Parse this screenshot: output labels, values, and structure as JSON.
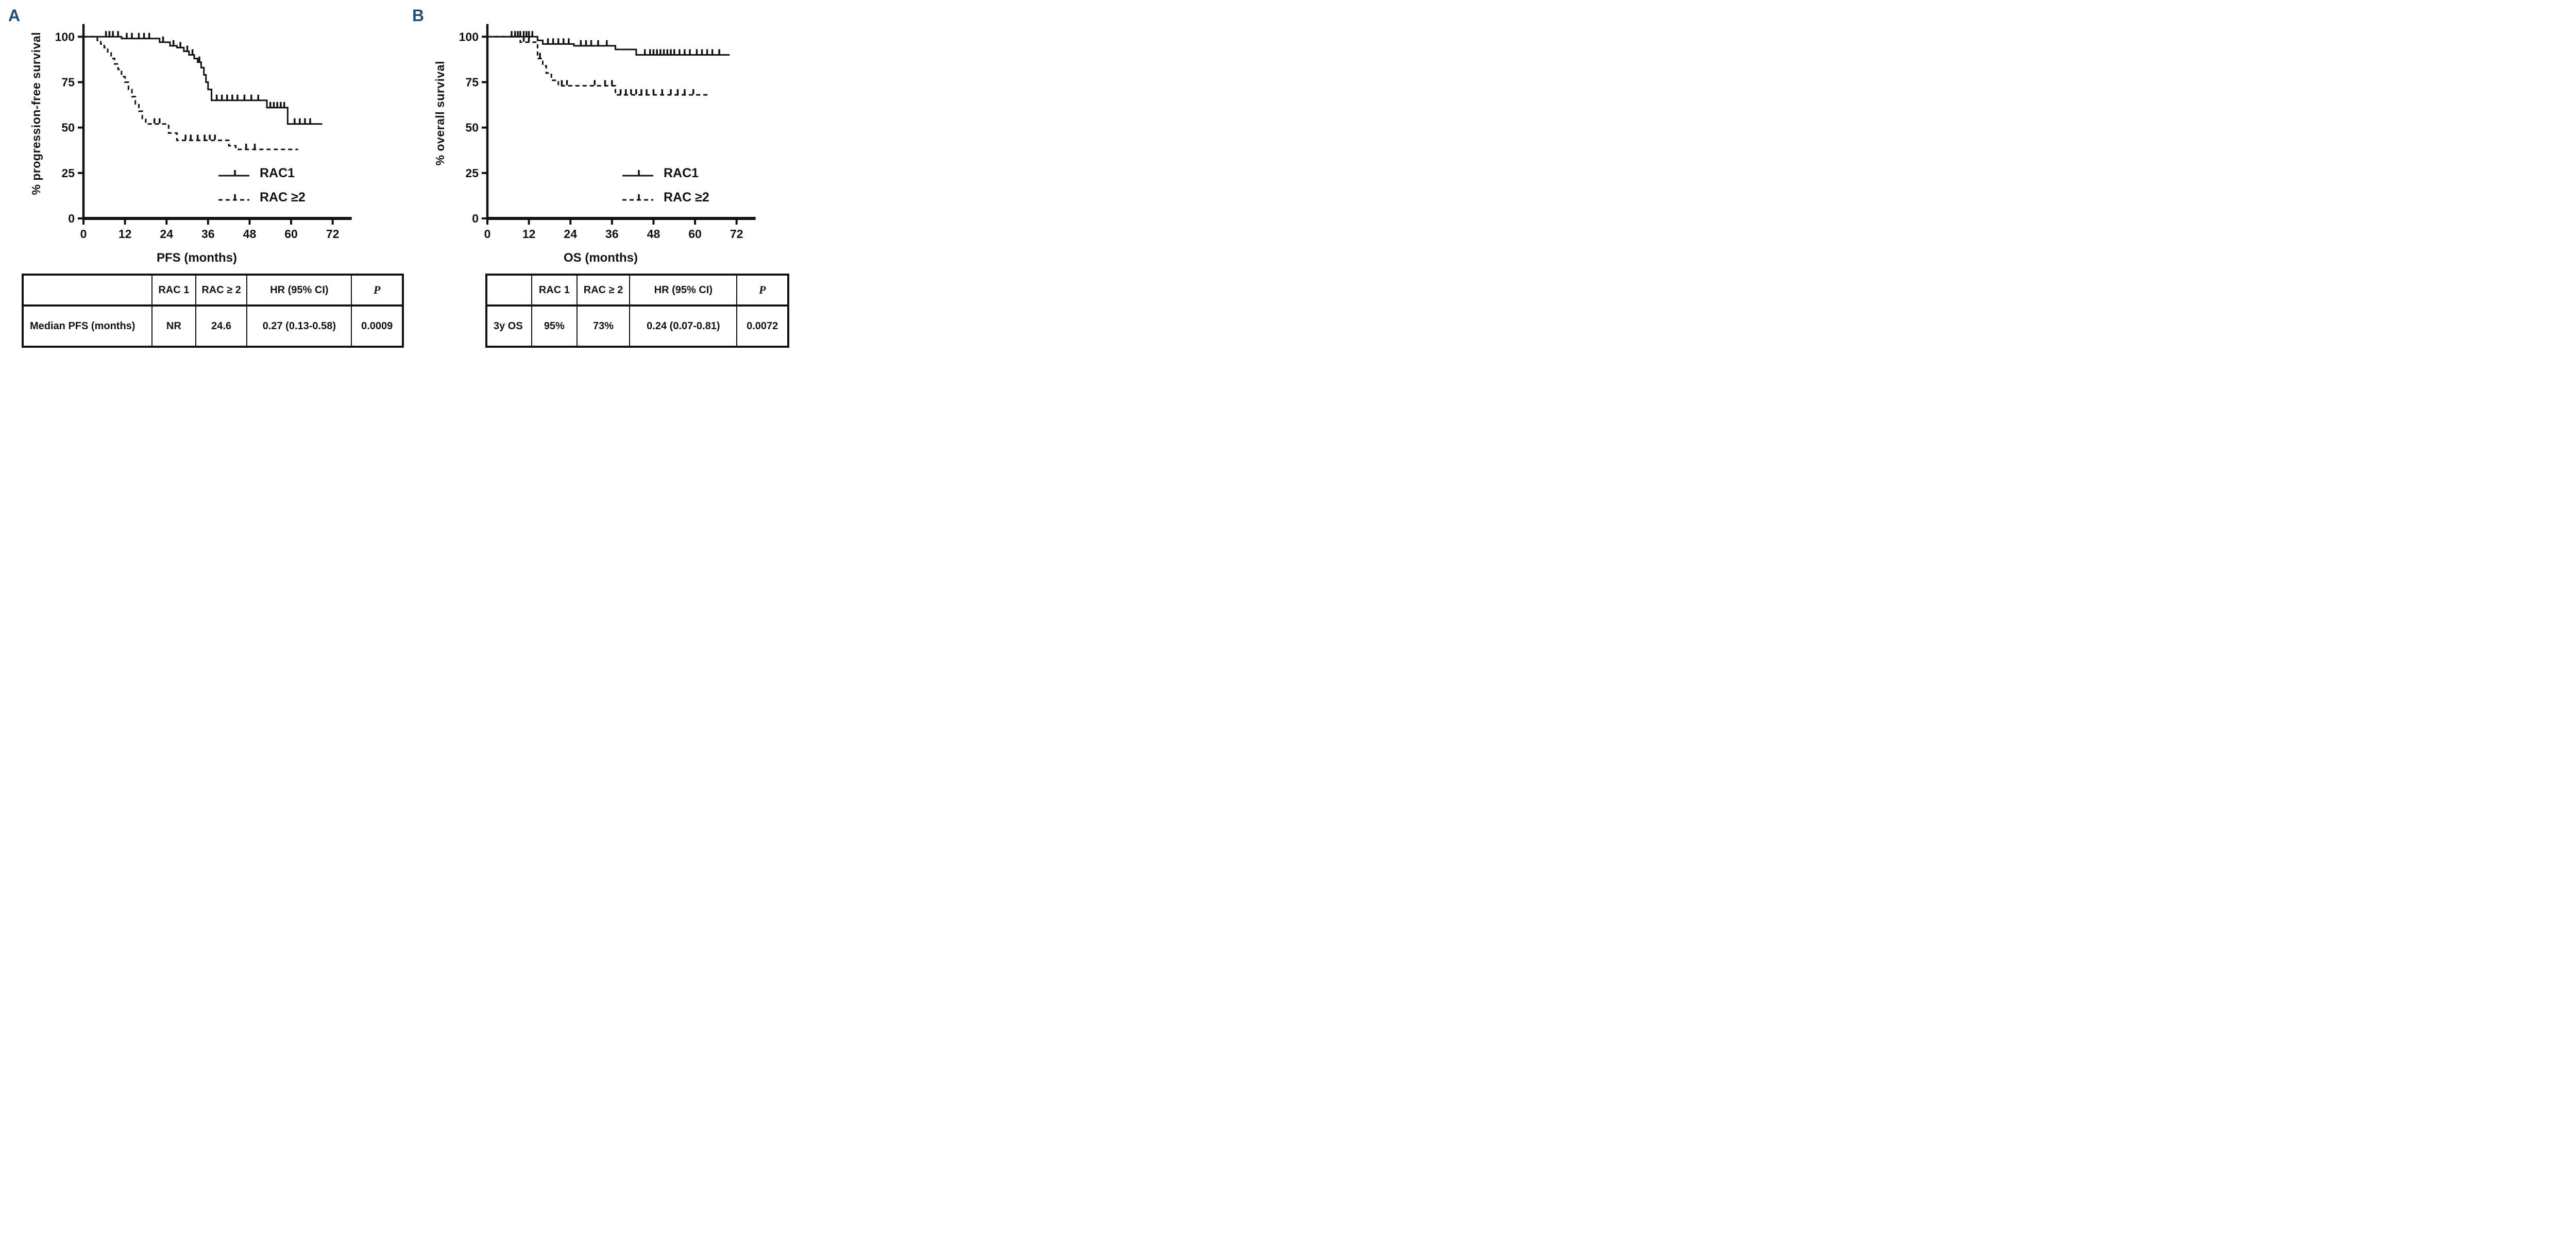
{
  "figure": {
    "panels": [
      {
        "letter": "A",
        "y_label": "% progression-free survival",
        "x_label": "PFS (months)",
        "legend": [
          {
            "label": "RAC1",
            "style": "solid"
          },
          {
            "label": "RAC ≥2",
            "style": "dashed"
          }
        ]
      },
      {
        "letter": "B",
        "y_label": "% overall survival",
        "x_label": "OS (months)",
        "legend": [
          {
            "label": "RAC1",
            "style": "solid"
          },
          {
            "label": "RAC ≥2",
            "style": "dashed"
          }
        ]
      }
    ]
  },
  "colors": {
    "curve": "#111111",
    "panel_letter": "#1d4e7e",
    "background": "#ffffff"
  },
  "chart_data": [
    {
      "type": "line",
      "subtype": "kaplan-meier-step",
      "title": "",
      "xlabel": "PFS (months)",
      "ylabel": "% progression-free survival",
      "xlim": [
        0,
        78
      ],
      "ylim": [
        0,
        110
      ],
      "x_ticks": [
        0,
        12,
        24,
        36,
        48,
        60,
        72
      ],
      "y_ticks": [
        0,
        25,
        50,
        75,
        100
      ],
      "grid": false,
      "legend_position": "inside-lower-right",
      "series": [
        {
          "name": "RAC1",
          "style": "solid",
          "steps": [
            [
              0,
              100
            ],
            [
              11,
              99
            ],
            [
              22,
              97
            ],
            [
              25,
              95
            ],
            [
              27,
              94
            ],
            [
              29,
              92
            ],
            [
              30.5,
              90
            ],
            [
              32,
              88
            ],
            [
              33,
              86
            ],
            [
              34,
              83
            ],
            [
              34.8,
              79
            ],
            [
              35.4,
              75
            ],
            [
              36,
              71
            ],
            [
              37,
              65
            ],
            [
              53,
              61
            ],
            [
              59,
              52
            ],
            [
              69,
              52
            ]
          ],
          "censors": [
            [
              6.5,
              100
            ],
            [
              7.5,
              100
            ],
            [
              8.5,
              100
            ],
            [
              10,
              100
            ],
            [
              12.5,
              99
            ],
            [
              14,
              99
            ],
            [
              16,
              99
            ],
            [
              17.5,
              99
            ],
            [
              19,
              99
            ],
            [
              23,
              97
            ],
            [
              26,
              95
            ],
            [
              28,
              94
            ],
            [
              30,
              92
            ],
            [
              31.5,
              90
            ],
            [
              33.5,
              86
            ],
            [
              38.5,
              65
            ],
            [
              40,
              65
            ],
            [
              41.5,
              65
            ],
            [
              43,
              65
            ],
            [
              44.5,
              65
            ],
            [
              46.5,
              65
            ],
            [
              48.5,
              65
            ],
            [
              50.5,
              65
            ],
            [
              54,
              61
            ],
            [
              55,
              61
            ],
            [
              56,
              61
            ],
            [
              57,
              61
            ],
            [
              58,
              61
            ],
            [
              61,
              52
            ],
            [
              62.5,
              52
            ],
            [
              64,
              52
            ],
            [
              65.5,
              52
            ]
          ]
        },
        {
          "name": "RAC ≥2",
          "style": "dashed",
          "steps": [
            [
              0,
              100
            ],
            [
              4,
              98
            ],
            [
              5,
              96
            ],
            [
              6,
              94
            ],
            [
              7,
              91
            ],
            [
              8,
              88
            ],
            [
              9,
              85
            ],
            [
              10,
              82
            ],
            [
              11,
              78
            ],
            [
              12,
              75
            ],
            [
              13,
              71
            ],
            [
              14,
              67
            ],
            [
              15,
              63
            ],
            [
              16,
              59
            ],
            [
              17,
              55
            ],
            [
              18,
              52
            ],
            [
              24.6,
              47
            ],
            [
              27,
              43
            ],
            [
              42,
              40
            ],
            [
              44,
              38
            ],
            [
              62,
              38
            ]
          ],
          "censors": [
            [
              20.5,
              52
            ],
            [
              22,
              52
            ],
            [
              29.5,
              43
            ],
            [
              31,
              43
            ],
            [
              33,
              43
            ],
            [
              35,
              43
            ],
            [
              36.5,
              43
            ],
            [
              38,
              43
            ],
            [
              47,
              38
            ],
            [
              49.5,
              38
            ]
          ]
        }
      ]
    },
    {
      "type": "line",
      "subtype": "kaplan-meier-step",
      "title": "",
      "xlabel": "OS (months)",
      "ylabel": "% overall survival",
      "xlim": [
        0,
        78
      ],
      "ylim": [
        0,
        110
      ],
      "x_ticks": [
        0,
        12,
        24,
        36,
        48,
        60,
        72
      ],
      "y_ticks": [
        0,
        25,
        50,
        75,
        100
      ],
      "grid": false,
      "legend_position": "inside-lower-right",
      "series": [
        {
          "name": "RAC1",
          "style": "solid",
          "steps": [
            [
              0,
              100
            ],
            [
              14.5,
              98
            ],
            [
              16,
              96
            ],
            [
              25,
              95
            ],
            [
              37,
              93
            ],
            [
              43,
              90
            ],
            [
              70,
              90
            ]
          ],
          "censors": [
            [
              7,
              100
            ],
            [
              8,
              100
            ],
            [
              8.8,
              100
            ],
            [
              9.5,
              100
            ],
            [
              10.5,
              100
            ],
            [
              11.3,
              100
            ],
            [
              12,
              100
            ],
            [
              13,
              100
            ],
            [
              17.5,
              96
            ],
            [
              19,
              96
            ],
            [
              20.5,
              96
            ],
            [
              22,
              96
            ],
            [
              23.5,
              96
            ],
            [
              27,
              95
            ],
            [
              28.5,
              95
            ],
            [
              30,
              95
            ],
            [
              32,
              95
            ],
            [
              34.5,
              95
            ],
            [
              45.5,
              90
            ],
            [
              47,
              90
            ],
            [
              48,
              90
            ],
            [
              49,
              90
            ],
            [
              50,
              90
            ],
            [
              51,
              90
            ],
            [
              52,
              90
            ],
            [
              53,
              90
            ],
            [
              54,
              90
            ],
            [
              55.5,
              90
            ],
            [
              57,
              90
            ],
            [
              58.5,
              90
            ],
            [
              60.5,
              90
            ],
            [
              62,
              90
            ],
            [
              63.5,
              90
            ],
            [
              65,
              90
            ],
            [
              67,
              90
            ]
          ]
        },
        {
          "name": "RAC ≥2",
          "style": "dashed",
          "steps": [
            [
              0,
              100
            ],
            [
              9.5,
              97
            ],
            [
              14.5,
              88
            ],
            [
              16,
              84
            ],
            [
              17,
              80
            ],
            [
              18.5,
              76
            ],
            [
              20.5,
              73
            ],
            [
              37,
              68
            ],
            [
              64,
              68
            ]
          ],
          "censors": [
            [
              10.5,
              97
            ],
            [
              12,
              97
            ],
            [
              15.2,
              88
            ],
            [
              21.5,
              73
            ],
            [
              23,
              73
            ],
            [
              31,
              73
            ],
            [
              34,
              73
            ],
            [
              36,
              73
            ],
            [
              38.5,
              68
            ],
            [
              40,
              68
            ],
            [
              41.5,
              68
            ],
            [
              43,
              68
            ],
            [
              44.5,
              68
            ],
            [
              46,
              68
            ],
            [
              48,
              68
            ],
            [
              50.5,
              68
            ],
            [
              53,
              68
            ],
            [
              55,
              68
            ],
            [
              57,
              68
            ],
            [
              59.5,
              68
            ]
          ]
        }
      ]
    }
  ],
  "tables": [
    {
      "headers": [
        "",
        "RAC 1",
        "RAC ≥ 2",
        "HR (95% CI)",
        "P"
      ],
      "rows": [
        [
          "Median PFS (months)",
          "NR",
          "24.6",
          "0.27 (0.13-0.58)",
          "0.0009"
        ]
      ]
    },
    {
      "headers": [
        "",
        "RAC 1",
        "RAC ≥ 2",
        "HR (95% CI)",
        "P"
      ],
      "rows": [
        [
          "3y OS",
          "95%",
          "73%",
          "0.24 (0.07-0.81)",
          "0.0072"
        ]
      ]
    }
  ]
}
